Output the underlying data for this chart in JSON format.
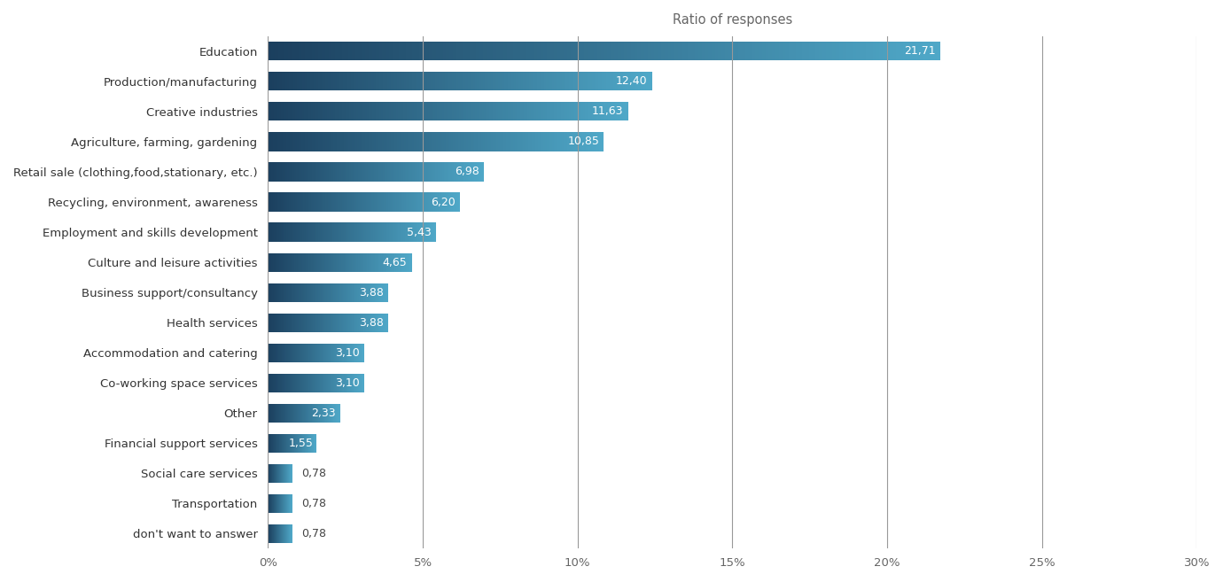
{
  "categories": [
    "Education",
    "Production/manufacturing",
    "Creative industries",
    "Agriculture, farming, gardening",
    "Retail sale (clothing,food,stationary, etc.)",
    "Recycling, environment, awareness",
    "Employment and skills development",
    "Culture and leisure activities",
    "Business support/consultancy",
    "Health services",
    "Accommodation and catering",
    "Co-working space services",
    "Other",
    "Financial support services",
    "Social care services",
    "Transportation",
    "don't want to answer"
  ],
  "values": [
    21.71,
    12.4,
    11.63,
    10.85,
    6.98,
    6.2,
    5.43,
    4.65,
    3.88,
    3.88,
    3.1,
    3.1,
    2.33,
    1.55,
    0.78,
    0.78,
    0.78
  ],
  "labels": [
    "21,71",
    "12,40",
    "11,63",
    "10,85",
    "6,98",
    "6,20",
    "5,43",
    "4,65",
    "3,88",
    "3,88",
    "3,10",
    "3,10",
    "2,33",
    "1,55",
    "0,78",
    "0,78",
    "0,78"
  ],
  "xlabel": "Ratio of responses",
  "color_dark": "#1b3f5e",
  "color_light": "#4fa8c8",
  "background_color": "#ffffff",
  "xlim": [
    0,
    30
  ],
  "xticks": [
    0,
    5,
    10,
    15,
    20,
    25,
    30
  ],
  "xtick_labels": [
    "0%",
    "5%",
    "10%",
    "15%",
    "20%",
    "25%",
    "30%"
  ],
  "label_fontsize": 9.5,
  "value_fontsize": 9.0,
  "title_fontsize": 10.5,
  "bar_height": 0.62,
  "figsize": [
    13.8,
    6.57
  ]
}
